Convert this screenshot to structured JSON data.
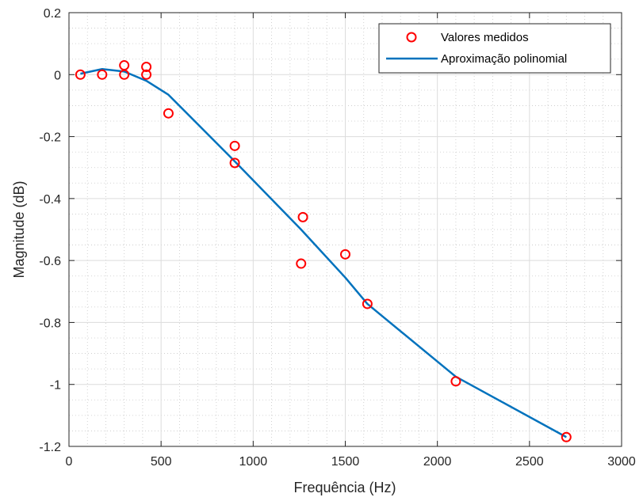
{
  "chart_data": {
    "type": "scatter",
    "xlabel": "Frequência (Hz)",
    "ylabel": "Magnitude (dB)",
    "xlim": [
      0,
      3000
    ],
    "ylim": [
      -1.2,
      0.2
    ],
    "xticks": [
      0,
      500,
      1000,
      1500,
      2000,
      2500,
      3000
    ],
    "xtick_labels": [
      "0",
      "500",
      "1000",
      "1500",
      "2000",
      "2500",
      "3000"
    ],
    "yticks": [
      0.2,
      0,
      -0.2,
      -0.4,
      -0.6,
      -0.8,
      -1,
      -1.2
    ],
    "ytick_labels": [
      "0.2",
      "0",
      "-0.2",
      "-0.4",
      "-0.6",
      "-0.8",
      "-1",
      "-1.2"
    ],
    "grid": true,
    "minor_grid": true,
    "legend_position": "top-right",
    "series": [
      {
        "name": "Valores medidos",
        "kind": "scatter",
        "marker": "circle",
        "color": "#ff0000",
        "x": [
          62,
          180,
          300,
          300,
          420,
          420,
          540,
          900,
          900,
          1260,
          1270,
          1500,
          1620,
          2100,
          2700
        ],
        "y": [
          0.0,
          0.0,
          0.0,
          0.03,
          0.025,
          0.0,
          -0.125,
          -0.23,
          -0.285,
          -0.61,
          -0.46,
          -0.58,
          -0.74,
          -0.99,
          -1.17
        ]
      },
      {
        "name": "Aproximação polinomial",
        "kind": "line",
        "color": "#0072bd",
        "x": [
          62,
          180,
          300,
          420,
          540,
          900,
          1260,
          1500,
          1620,
          2100,
          2700
        ],
        "y": [
          0.003,
          0.018,
          0.01,
          -0.02,
          -0.065,
          -0.28,
          -0.5,
          -0.655,
          -0.74,
          -0.975,
          -1.17
        ]
      }
    ]
  }
}
